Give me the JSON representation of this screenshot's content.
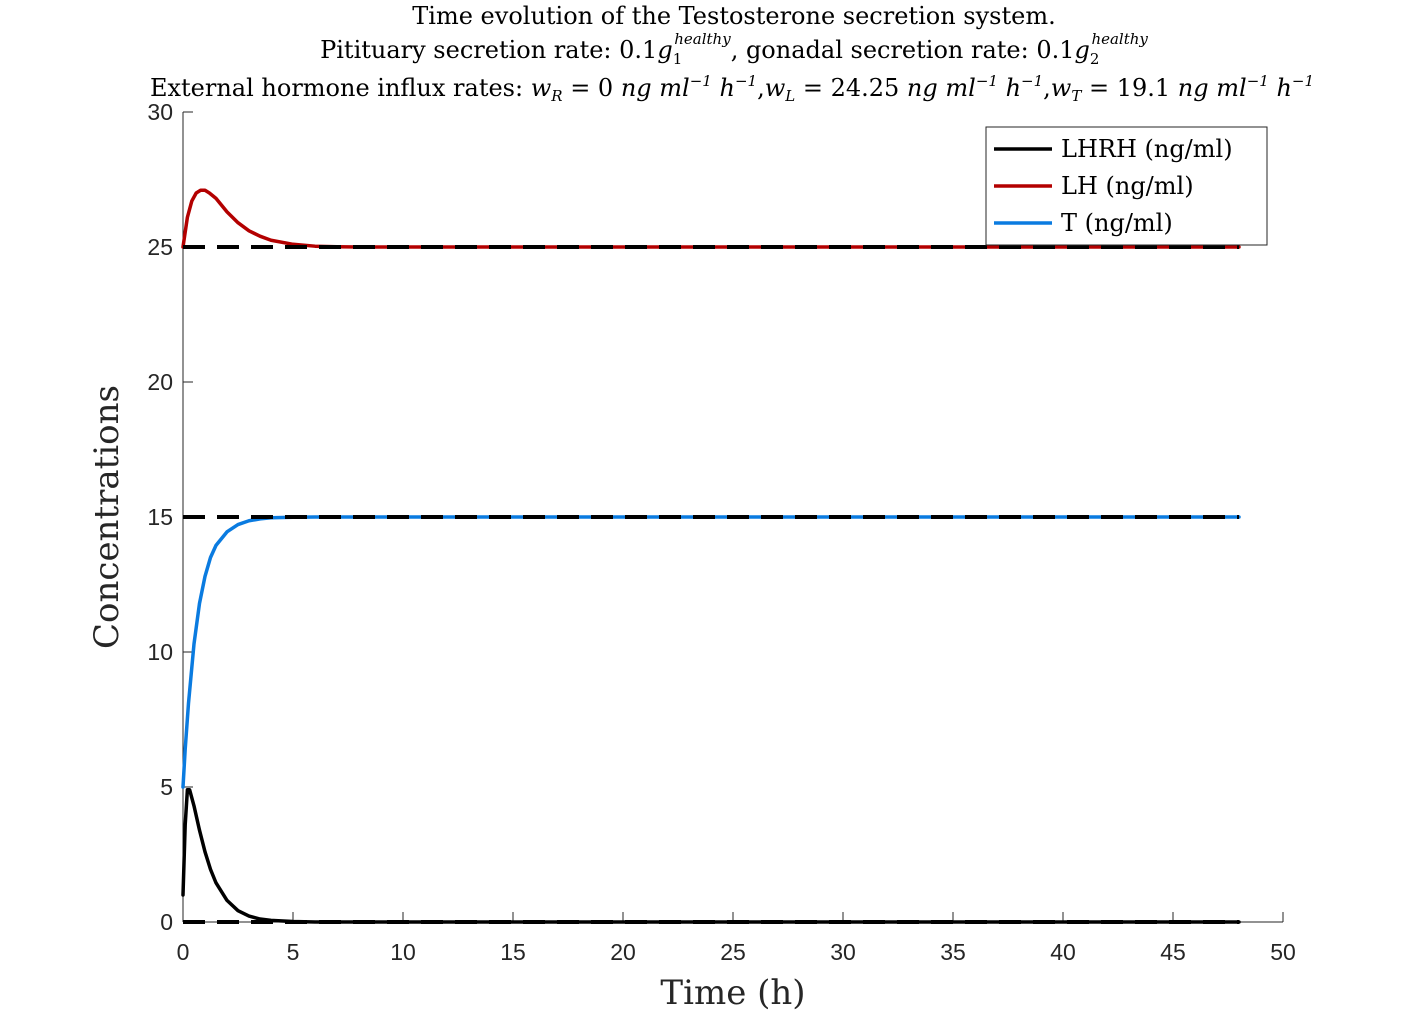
{
  "chart_data": {
    "type": "line",
    "title_lines": [
      "Time evolution of the Testosterone secretion system.",
      "Pitituary secretion rate: 0.1g1^healthy, gonadal secretion rate: 0.1g2^healthy",
      "External hormone influx rates: w_R = 0 ng ml^-1 h^-1, w_L = 24.25 ng ml^-1 h^-1, w_T = 19.1 ng ml^-1 h^-1"
    ],
    "title": {
      "line1": "Time evolution of the Testosterone secretion system.",
      "line2": {
        "a": "Pitituary secretion rate: 0.1",
        "g1": "g",
        "g1_sub": "1",
        "g1_sup": "healthy",
        "b": ", gonadal secretion rate: 0.1",
        "g2": "g",
        "g2_sub": "2",
        "g2_sup": "healthy"
      },
      "line3": {
        "prefix": "External hormone influx rates: ",
        "wR": "w",
        "wR_sub": "R",
        "wR_val": " = 0 ",
        "wL": "w",
        "wL_sub": "L",
        "wL_val": " = 24.25 ",
        "wT": "w",
        "wT_sub": "T",
        "wT_val": " = 19.1 ",
        "unit_ng": "ng ml",
        "unit_ml_sup": "−1",
        "unit_h": " h",
        "unit_h_sup": "−1",
        "comma": ","
      }
    },
    "xlabel": "Time (h)",
    "ylabel": "Concentrations",
    "xlim": [
      0,
      50
    ],
    "ylim": [
      0,
      30
    ],
    "xticks": [
      "0",
      "5",
      "10",
      "15",
      "20",
      "25",
      "30",
      "35",
      "40",
      "45",
      "50"
    ],
    "yticks": [
      "0",
      "5",
      "10",
      "15",
      "20",
      "25",
      "30"
    ],
    "legend_position": "top-right",
    "grid": false,
    "series": [
      {
        "name": "LHRH (ng/ml)",
        "color": "#000000",
        "x": [
          0,
          0.1,
          0.2,
          0.3,
          0.5,
          0.75,
          1,
          1.25,
          1.5,
          2,
          2.5,
          3,
          3.5,
          4,
          5,
          6,
          8,
          10,
          15,
          20,
          30,
          40,
          48
        ],
        "y": [
          1.0,
          3.6,
          4.9,
          4.9,
          4.3,
          3.4,
          2.6,
          1.95,
          1.45,
          0.8,
          0.42,
          0.22,
          0.11,
          0.06,
          0.02,
          0.0,
          0.0,
          0.0,
          0.0,
          0.0,
          0.0,
          0.0,
          0.0
        ]
      },
      {
        "name": "LH (ng/ml)",
        "color": "#b30000",
        "x": [
          0,
          0.2,
          0.4,
          0.6,
          0.8,
          1.0,
          1.2,
          1.5,
          2,
          2.5,
          3,
          3.5,
          4,
          5,
          6,
          7,
          8,
          10,
          15,
          20,
          30,
          40,
          48
        ],
        "y": [
          25.0,
          26.1,
          26.7,
          27.0,
          27.1,
          27.1,
          27.0,
          26.8,
          26.3,
          25.9,
          25.6,
          25.4,
          25.25,
          25.1,
          25.03,
          25.01,
          25.0,
          25.0,
          25.0,
          25.0,
          25.0,
          25.0,
          25.0
        ]
      },
      {
        "name": "T (ng/ml)",
        "color": "#0a7be0",
        "x": [
          0,
          0.1,
          0.25,
          0.5,
          0.75,
          1,
          1.25,
          1.5,
          2,
          2.5,
          3,
          3.5,
          4,
          5,
          6,
          8,
          10,
          15,
          20,
          30,
          40,
          48
        ],
        "y": [
          5.0,
          6.4,
          8.1,
          10.3,
          11.8,
          12.8,
          13.5,
          13.95,
          14.45,
          14.72,
          14.86,
          14.93,
          14.97,
          14.99,
          15.0,
          15.0,
          15.0,
          15.0,
          15.0,
          15.0,
          15.0,
          15.0
        ]
      }
    ],
    "reference_lines": [
      {
        "y": 25,
        "x_range": [
          0,
          48
        ],
        "style": "dashed",
        "color": "#000000"
      },
      {
        "y": 15,
        "x_range": [
          0,
          48
        ],
        "style": "dashed",
        "color": "#000000"
      },
      {
        "y": 0,
        "x_range": [
          0,
          48
        ],
        "style": "dashed",
        "color": "#000000"
      }
    ]
  }
}
